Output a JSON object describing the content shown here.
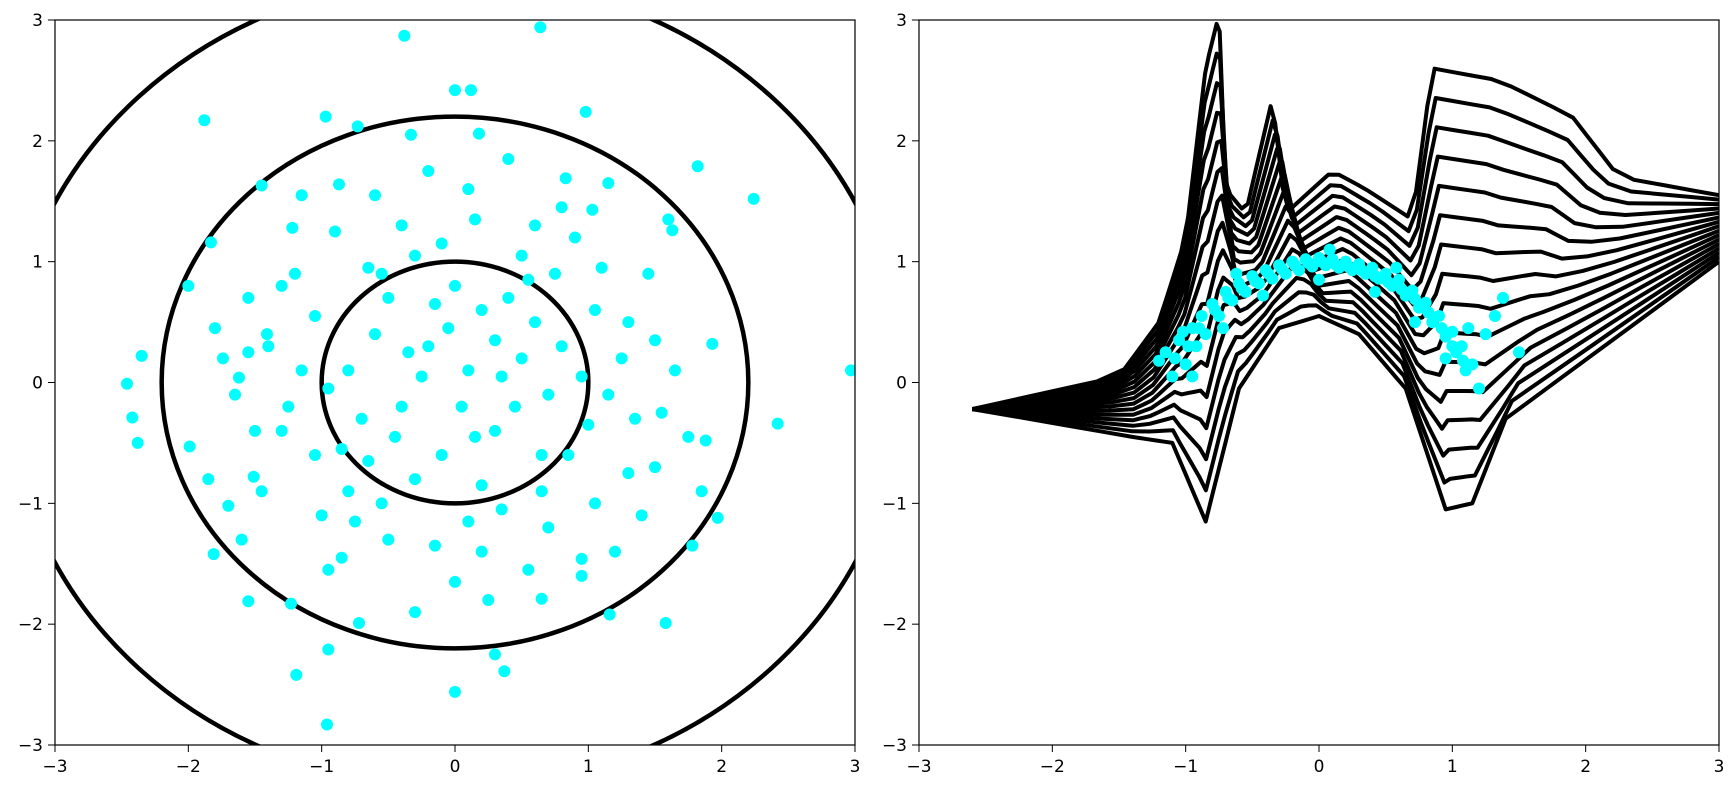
{
  "colors": {
    "points": "#00ffff",
    "contours": "#000000",
    "background": "#ffffff"
  },
  "chart_data": [
    {
      "type": "scatter",
      "xlim": [
        -3,
        3
      ],
      "ylim": [
        -3,
        3
      ],
      "xticks": [
        -3,
        -2,
        -1,
        0,
        1,
        2,
        3
      ],
      "yticks": [
        -3,
        -2,
        -1,
        0,
        1,
        2,
        3
      ],
      "xtick_labels": [
        "−3",
        "−2",
        "−1",
        "0",
        "1",
        "2",
        "3"
      ],
      "ytick_labels": [
        "−3",
        "−2",
        "−1",
        "0",
        "1",
        "2",
        "3"
      ],
      "grid": false,
      "contours": {
        "shape": "concentric circles centered at origin",
        "radii": [
          1.0,
          2.2,
          3.35
        ]
      },
      "series": [
        {
          "color": "#00ffff",
          "points": [
            [
              -0.38,
              2.87
            ],
            [
              0.64,
              2.94
            ],
            [
              -1.88,
              2.17
            ],
            [
              -0.97,
              2.2
            ],
            [
              0.98,
              2.24
            ],
            [
              0.0,
              2.42
            ],
            [
              0.12,
              2.42
            ],
            [
              1.82,
              1.79
            ],
            [
              2.24,
              1.52
            ],
            [
              -0.73,
              2.12
            ],
            [
              -0.33,
              2.05
            ],
            [
              0.18,
              2.06
            ],
            [
              -1.45,
              1.63
            ],
            [
              -1.22,
              1.28
            ],
            [
              -0.87,
              1.64
            ],
            [
              0.83,
              1.69
            ],
            [
              1.03,
              1.43
            ],
            [
              1.63,
              1.26
            ],
            [
              -1.83,
              1.16
            ],
            [
              -2.0,
              0.8
            ],
            [
              -2.35,
              0.22
            ],
            [
              -2.46,
              -0.01
            ],
            [
              -2.42,
              -0.29
            ],
            [
              -2.38,
              -0.5
            ],
            [
              2.97,
              0.1
            ],
            [
              2.42,
              -0.34
            ],
            [
              1.93,
              0.32
            ],
            [
              1.88,
              -0.48
            ],
            [
              1.97,
              -1.12
            ],
            [
              1.78,
              -1.35
            ],
            [
              -1.81,
              -1.42
            ],
            [
              -1.55,
              -1.81
            ],
            [
              -1.23,
              -1.83
            ],
            [
              -1.19,
              -2.42
            ],
            [
              -0.96,
              -2.83
            ],
            [
              -0.95,
              -2.21
            ],
            [
              -0.72,
              -1.99
            ],
            [
              0.0,
              -2.56
            ],
            [
              0.3,
              -2.25
            ],
            [
              0.37,
              -2.39
            ],
            [
              1.16,
              -1.92
            ],
            [
              1.58,
              -1.99
            ],
            [
              0.65,
              -1.79
            ],
            [
              0.95,
              -1.46
            ],
            [
              -1.7,
              -1.02
            ],
            [
              -1.51,
              -0.78
            ],
            [
              -1.99,
              -0.53
            ],
            [
              -1.41,
              0.4
            ],
            [
              -1.62,
              0.04
            ],
            [
              -1.74,
              0.2
            ],
            [
              -0.2,
              0.3
            ],
            [
              0.1,
              0.1
            ],
            [
              -0.4,
              -0.2
            ],
            [
              0.3,
              -0.4
            ],
            [
              0.5,
              0.2
            ],
            [
              -0.6,
              0.4
            ],
            [
              0.2,
              0.6
            ],
            [
              -0.1,
              -0.6
            ],
            [
              0.7,
              -0.1
            ],
            [
              -0.7,
              -0.3
            ],
            [
              0.0,
              0.8
            ],
            [
              0.4,
              0.7
            ],
            [
              -0.5,
              0.7
            ],
            [
              0.6,
              0.5
            ],
            [
              -0.8,
              0.1
            ],
            [
              0.8,
              0.3
            ],
            [
              -0.3,
              -0.8
            ],
            [
              0.2,
              -0.85
            ],
            [
              0.65,
              -0.6
            ],
            [
              -0.65,
              -0.65
            ],
            [
              0.05,
              -0.2
            ],
            [
              -0.25,
              0.05
            ],
            [
              0.35,
              0.05
            ],
            [
              -0.05,
              0.45
            ],
            [
              0.15,
              -0.45
            ],
            [
              -0.45,
              -0.45
            ],
            [
              0.45,
              -0.2
            ],
            [
              -0.15,
              0.65
            ],
            [
              0.55,
              0.85
            ],
            [
              -0.85,
              -0.55
            ],
            [
              0.85,
              -0.6
            ],
            [
              -0.55,
              0.9
            ],
            [
              0.95,
              0.05
            ],
            [
              -0.95,
              -0.05
            ],
            [
              0.3,
              0.35
            ],
            [
              -0.35,
              0.25
            ],
            [
              -1.2,
              0.9
            ],
            [
              1.1,
              0.95
            ],
            [
              -1.0,
              -1.1
            ],
            [
              1.05,
              -1.0
            ],
            [
              -1.4,
              0.3
            ],
            [
              1.35,
              -0.3
            ],
            [
              0.6,
              1.3
            ],
            [
              -0.4,
              1.3
            ],
            [
              0.2,
              -1.4
            ],
            [
              -0.5,
              -1.3
            ],
            [
              1.3,
              0.5
            ],
            [
              -1.3,
              -0.4
            ],
            [
              1.5,
              -0.7
            ],
            [
              -1.55,
              0.7
            ],
            [
              0.9,
              1.2
            ],
            [
              -0.9,
              1.25
            ],
            [
              0.7,
              -1.2
            ],
            [
              -0.75,
              -1.15
            ],
            [
              1.45,
              0.9
            ],
            [
              -1.45,
              -0.9
            ],
            [
              0.1,
              1.6
            ],
            [
              0.0,
              -1.65
            ],
            [
              1.65,
              0.1
            ],
            [
              -1.65,
              -0.1
            ],
            [
              1.2,
              -1.4
            ],
            [
              -1.15,
              1.55
            ],
            [
              0.4,
              1.85
            ],
            [
              -0.3,
              -1.9
            ],
            [
              1.6,
              1.35
            ],
            [
              -1.6,
              -1.3
            ],
            [
              1.25,
              0.2
            ],
            [
              -1.25,
              -0.2
            ],
            [
              0.55,
              -1.55
            ],
            [
              -0.6,
              1.55
            ],
            [
              1.75,
              -0.45
            ],
            [
              -1.8,
              0.45
            ],
            [
              0.95,
              -1.6
            ],
            [
              -0.95,
              -1.55
            ],
            [
              1.15,
              1.65
            ],
            [
              -0.2,
              1.75
            ],
            [
              0.25,
              -1.8
            ],
            [
              1.85,
              -0.9
            ],
            [
              -1.85,
              -0.8
            ],
            [
              1.4,
              -1.1
            ],
            [
              -1.05,
              0.55
            ],
            [
              1.0,
              -0.35
            ],
            [
              -0.3,
              1.05
            ],
            [
              0.35,
              -1.05
            ],
            [
              0.75,
              0.9
            ],
            [
              -0.8,
              -0.9
            ],
            [
              -0.1,
              1.15
            ],
            [
              0.1,
              -1.15
            ],
            [
              1.15,
              -0.1
            ],
            [
              -1.15,
              0.1
            ],
            [
              0.5,
              1.05
            ],
            [
              -0.55,
              -1.0
            ],
            [
              1.05,
              0.6
            ],
            [
              -1.05,
              -0.6
            ],
            [
              0.65,
              -0.9
            ],
            [
              -0.65,
              0.95
            ],
            [
              1.3,
              -0.75
            ],
            [
              -1.3,
              0.8
            ],
            [
              0.15,
              1.35
            ],
            [
              -0.15,
              -1.35
            ],
            [
              1.5,
              0.35
            ],
            [
              -1.5,
              -0.4
            ],
            [
              0.8,
              1.45
            ],
            [
              -0.85,
              -1.45
            ],
            [
              1.55,
              -0.25
            ],
            [
              -1.55,
              0.25
            ]
          ]
        }
      ]
    },
    {
      "type": "scatter",
      "xlim": [
        -3,
        3
      ],
      "ylim": [
        -3,
        3
      ],
      "xticks": [
        -3,
        -2,
        -1,
        0,
        1,
        2,
        3
      ],
      "yticks": [
        -3,
        -2,
        -1,
        0,
        1,
        2,
        3
      ],
      "xtick_labels": [
        "−3",
        "−2",
        "−1",
        "0",
        "1",
        "2",
        "3"
      ],
      "ytick_labels": [
        "−3",
        "−2",
        "−1",
        "0",
        "1",
        "2",
        "3"
      ],
      "grid": false,
      "contours": {
        "shape": "arched level curves around a moon-shaped point cloud",
        "levels": 16
      },
      "series": [
        {
          "color": "#00ffff",
          "points": [
            [
              -1.2,
              0.18
            ],
            [
              -1.15,
              0.25
            ],
            [
              -1.1,
              0.05
            ],
            [
              -1.05,
              0.35
            ],
            [
              -1.0,
              0.15
            ],
            [
              -0.95,
              0.45
            ],
            [
              -0.92,
              0.3
            ],
            [
              -0.88,
              0.55
            ],
            [
              -0.85,
              0.4
            ],
            [
              -0.8,
              0.65
            ],
            [
              -0.75,
              0.55
            ],
            [
              -0.7,
              0.75
            ],
            [
              -0.65,
              0.68
            ],
            [
              -0.6,
              0.82
            ],
            [
              -0.55,
              0.75
            ],
            [
              -0.5,
              0.88
            ],
            [
              -0.45,
              0.82
            ],
            [
              -0.4,
              0.93
            ],
            [
              -0.35,
              0.86
            ],
            [
              -0.3,
              0.97
            ],
            [
              -0.25,
              0.9
            ],
            [
              -0.2,
              1.0
            ],
            [
              -0.15,
              0.93
            ],
            [
              -0.1,
              1.02
            ],
            [
              -0.05,
              0.96
            ],
            [
              0.0,
              1.03
            ],
            [
              0.05,
              0.97
            ],
            [
              0.1,
              1.02
            ],
            [
              0.15,
              0.95
            ],
            [
              0.2,
              1.0
            ],
            [
              0.25,
              0.93
            ],
            [
              0.3,
              0.98
            ],
            [
              0.35,
              0.9
            ],
            [
              0.4,
              0.95
            ],
            [
              0.45,
              0.86
            ],
            [
              0.5,
              0.9
            ],
            [
              0.55,
              0.8
            ],
            [
              0.6,
              0.85
            ],
            [
              0.65,
              0.72
            ],
            [
              0.7,
              0.76
            ],
            [
              0.75,
              0.62
            ],
            [
              0.8,
              0.66
            ],
            [
              0.85,
              0.5
            ],
            [
              0.9,
              0.55
            ],
            [
              0.95,
              0.38
            ],
            [
              1.0,
              0.42
            ],
            [
              1.03,
              0.25
            ],
            [
              1.07,
              0.3
            ],
            [
              1.1,
              0.1
            ],
            [
              1.15,
              0.15
            ],
            [
              1.2,
              -0.05
            ],
            [
              1.25,
              0.4
            ],
            [
              1.32,
              0.55
            ],
            [
              1.38,
              0.7
            ],
            [
              1.5,
              0.25
            ],
            [
              -1.08,
              0.2
            ],
            [
              -0.98,
              0.3
            ],
            [
              -0.9,
              0.45
            ],
            [
              -0.78,
              0.6
            ],
            [
              -0.68,
              0.7
            ],
            [
              -0.58,
              0.78
            ],
            [
              -0.48,
              0.84
            ],
            [
              -0.38,
              0.9
            ],
            [
              -0.28,
              0.94
            ],
            [
              -0.18,
              0.97
            ],
            [
              -0.08,
              0.99
            ],
            [
              0.02,
              1.0
            ],
            [
              0.12,
              0.98
            ],
            [
              0.22,
              0.96
            ],
            [
              0.32,
              0.93
            ],
            [
              0.42,
              0.88
            ],
            [
              0.52,
              0.83
            ],
            [
              0.62,
              0.77
            ],
            [
              0.72,
              0.69
            ],
            [
              0.82,
              0.58
            ],
            [
              0.92,
              0.45
            ],
            [
              1.0,
              0.3
            ],
            [
              1.08,
              0.18
            ],
            [
              -0.95,
              0.05
            ],
            [
              -0.72,
              0.45
            ],
            [
              -0.42,
              0.72
            ],
            [
              0.0,
              0.85
            ],
            [
              0.42,
              0.75
            ],
            [
              0.72,
              0.5
            ],
            [
              0.95,
              0.2
            ],
            [
              -1.02,
              0.42
            ],
            [
              -0.62,
              0.9
            ],
            [
              0.08,
              1.1
            ],
            [
              0.58,
              0.95
            ],
            [
              1.12,
              0.45
            ]
          ]
        }
      ]
    }
  ]
}
